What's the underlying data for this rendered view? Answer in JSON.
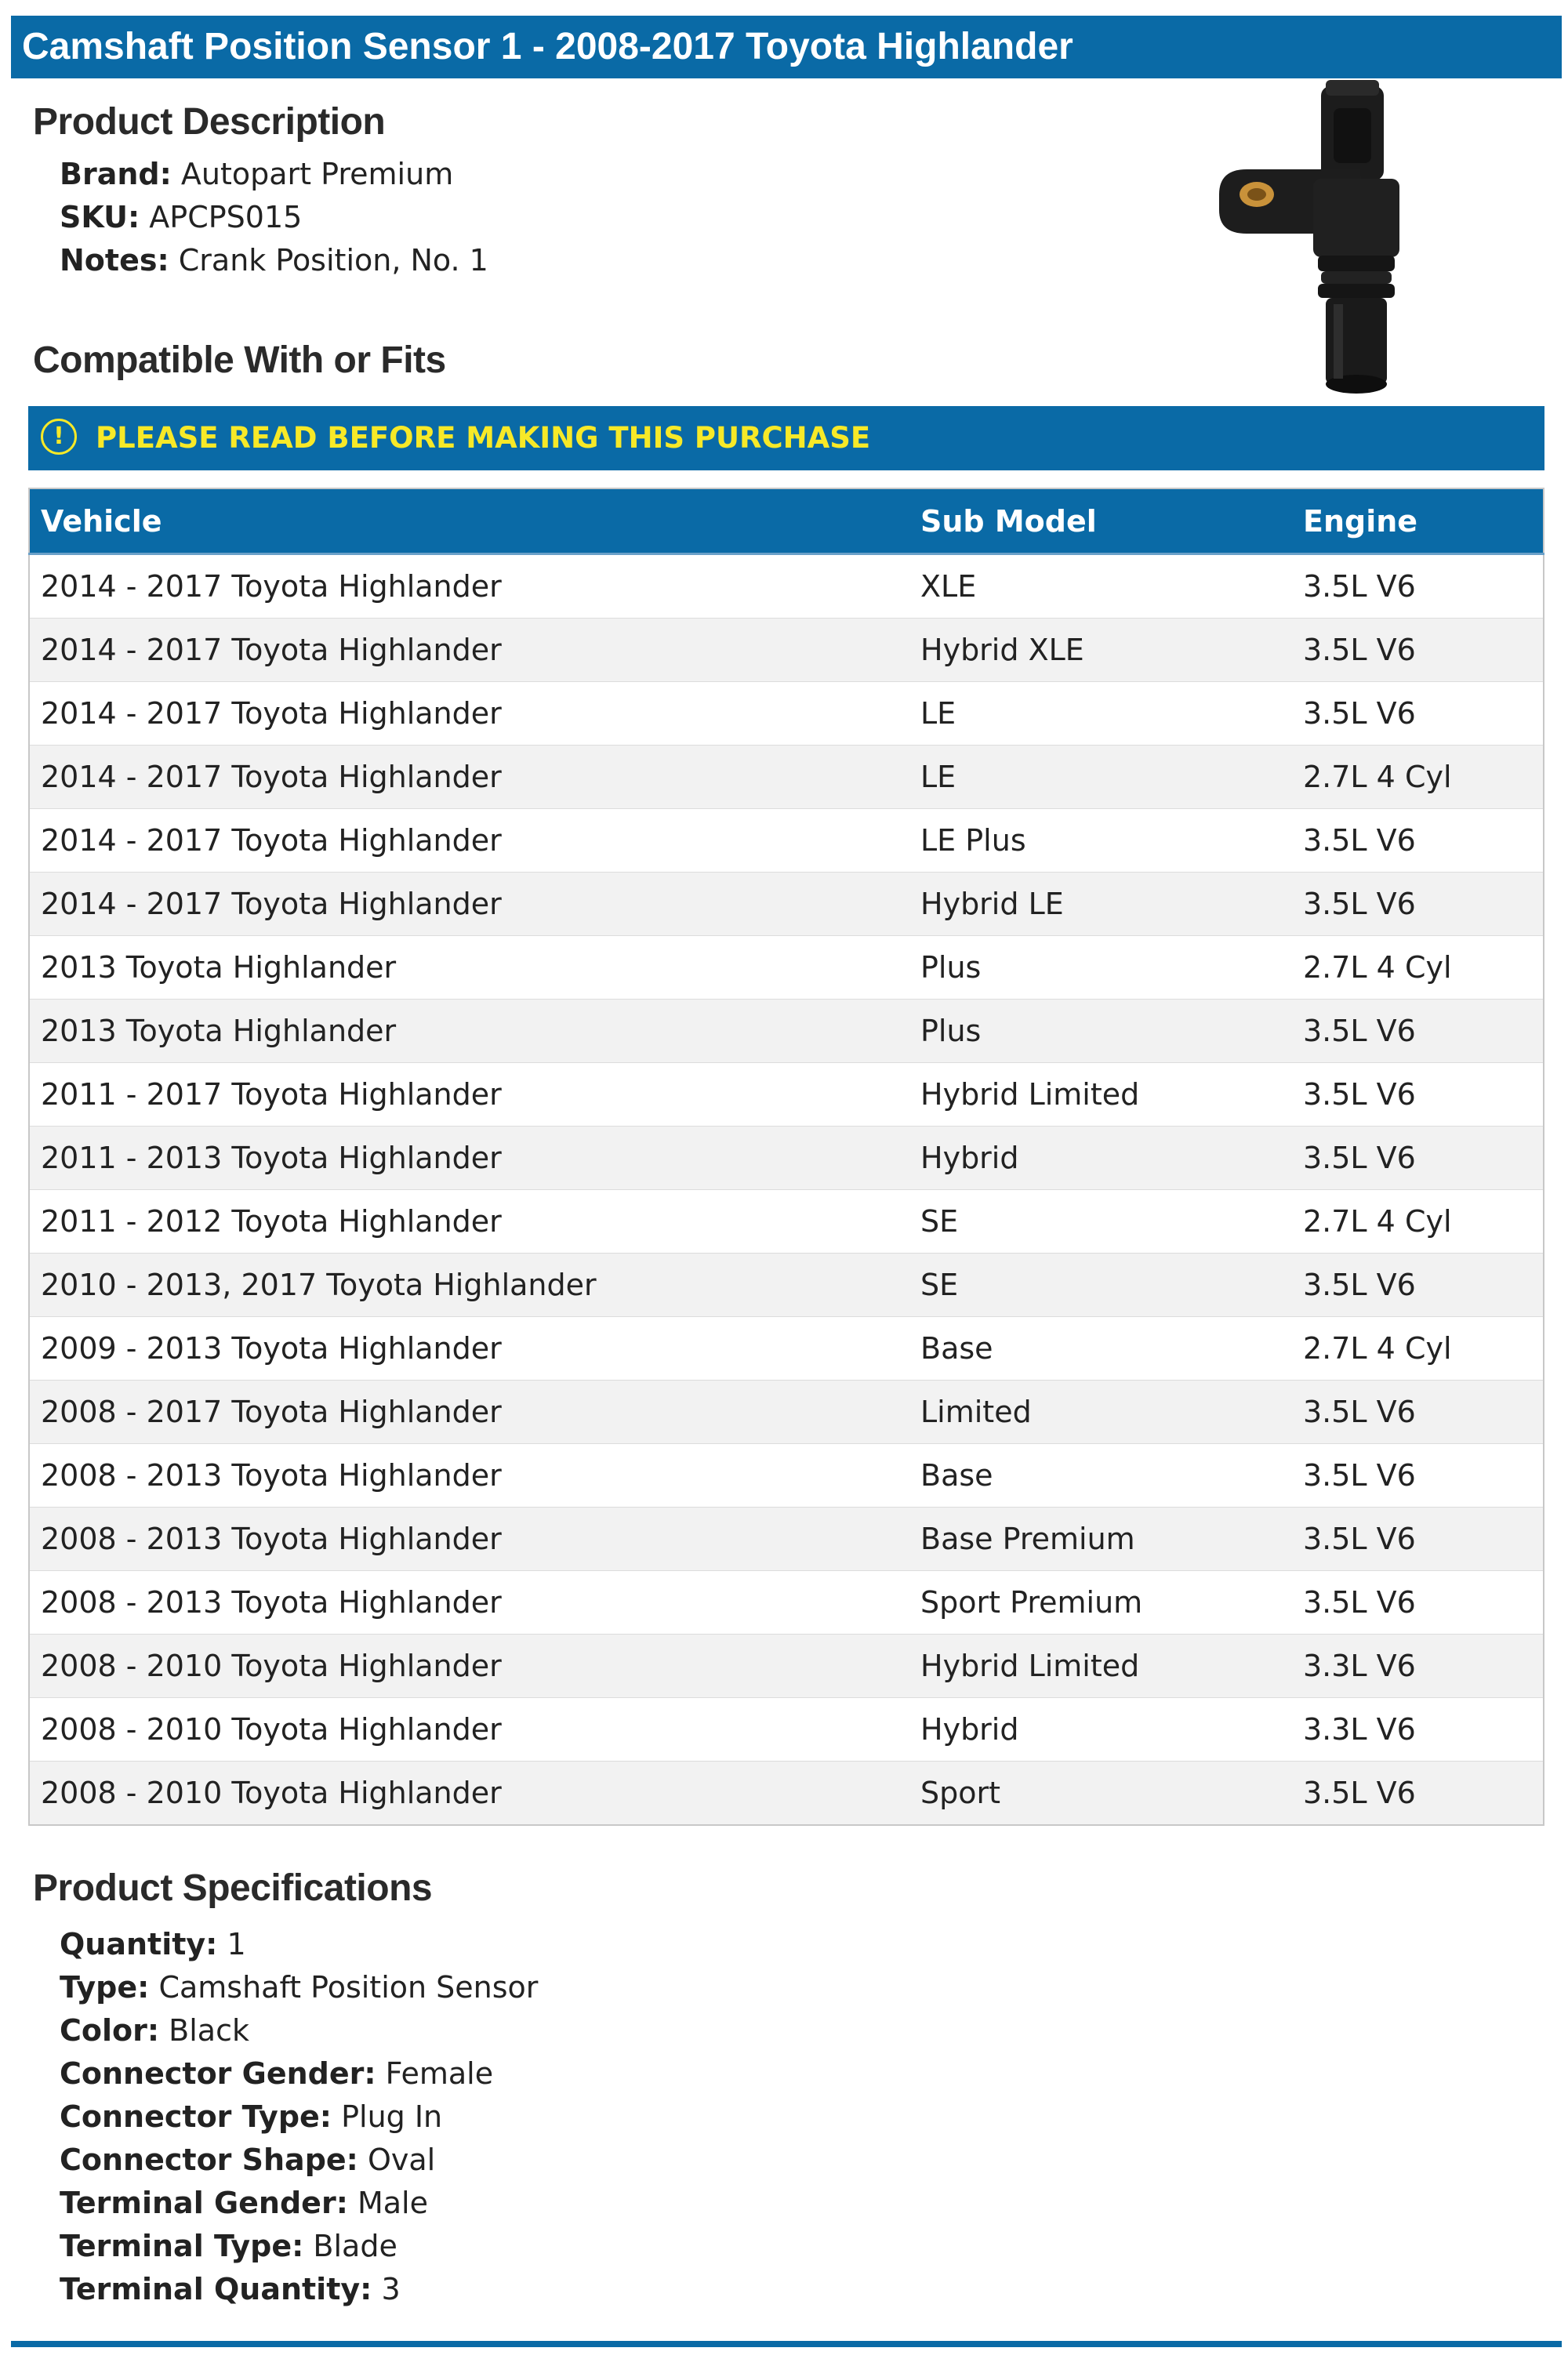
{
  "header": {
    "title": "Camshaft Position Sensor 1 - 2008-2017 Toyota Highlander"
  },
  "description": {
    "heading": "Product Description",
    "items": [
      {
        "label": "Brand:",
        "value": "Autopart Premium"
      },
      {
        "label": "SKU:",
        "value": "APCPS015"
      },
      {
        "label": "Notes:",
        "value": "Crank Position, No. 1"
      }
    ]
  },
  "product_image": {
    "alt": "Camshaft position sensor",
    "color": "#1c1c1c",
    "accent": "#c9923a"
  },
  "compatibility": {
    "heading": "Compatible With or Fits",
    "notice": "PLEASE READ BEFORE MAKING THIS PURCHASE",
    "notice_icon": "!",
    "columns": [
      "Vehicle",
      "Sub Model",
      "Engine"
    ],
    "rows": [
      [
        "2014 - 2017 Toyota Highlander",
        "XLE",
        "3.5L V6"
      ],
      [
        "2014 - 2017 Toyota Highlander",
        "Hybrid XLE",
        "3.5L V6"
      ],
      [
        "2014 - 2017 Toyota Highlander",
        "LE",
        "3.5L V6"
      ],
      [
        "2014 - 2017 Toyota Highlander",
        "LE",
        "2.7L 4 Cyl"
      ],
      [
        "2014 - 2017 Toyota Highlander",
        "LE Plus",
        "3.5L V6"
      ],
      [
        "2014 - 2017 Toyota Highlander",
        "Hybrid LE",
        "3.5L V6"
      ],
      [
        "2013 Toyota Highlander",
        "Plus",
        "2.7L 4 Cyl"
      ],
      [
        "2013 Toyota Highlander",
        "Plus",
        "3.5L V6"
      ],
      [
        "2011 - 2017 Toyota Highlander",
        "Hybrid Limited",
        "3.5L V6"
      ],
      [
        "2011 - 2013 Toyota Highlander",
        "Hybrid",
        "3.5L V6"
      ],
      [
        "2011 - 2012 Toyota Highlander",
        "SE",
        "2.7L 4 Cyl"
      ],
      [
        "2010 - 2013, 2017 Toyota Highlander",
        "SE",
        "3.5L V6"
      ],
      [
        "2009 - 2013 Toyota Highlander",
        "Base",
        "2.7L 4 Cyl"
      ],
      [
        "2008 - 2017 Toyota Highlander",
        "Limited",
        "3.5L V6"
      ],
      [
        "2008 - 2013 Toyota Highlander",
        "Base",
        "3.5L V6"
      ],
      [
        "2008 - 2013 Toyota Highlander",
        "Base Premium",
        "3.5L V6"
      ],
      [
        "2008 - 2013 Toyota Highlander",
        "Sport Premium",
        "3.5L V6"
      ],
      [
        "2008 - 2010 Toyota Highlander",
        "Hybrid Limited",
        "3.3L V6"
      ],
      [
        "2008 - 2010 Toyota Highlander",
        "Hybrid",
        "3.3L V6"
      ],
      [
        "2008 - 2010 Toyota Highlander",
        "Sport",
        "3.5L V6"
      ]
    ]
  },
  "specifications": {
    "heading": "Product Specifications",
    "items": [
      {
        "label": "Quantity:",
        "value": "1"
      },
      {
        "label": "Type:",
        "value": "Camshaft Position Sensor"
      },
      {
        "label": "Color:",
        "value": "Black"
      },
      {
        "label": "Connector Gender:",
        "value": "Female"
      },
      {
        "label": "Connector Type:",
        "value": "Plug In"
      },
      {
        "label": "Connector Shape:",
        "value": "Oval"
      },
      {
        "label": "Terminal Gender:",
        "value": "Male"
      },
      {
        "label": "Terminal Type:",
        "value": "Blade"
      },
      {
        "label": "Terminal Quantity:",
        "value": "3"
      }
    ]
  },
  "theme": {
    "primary": "#0a6aa6",
    "notice_text": "#f7e928",
    "stripe": "#f2f2f2"
  }
}
